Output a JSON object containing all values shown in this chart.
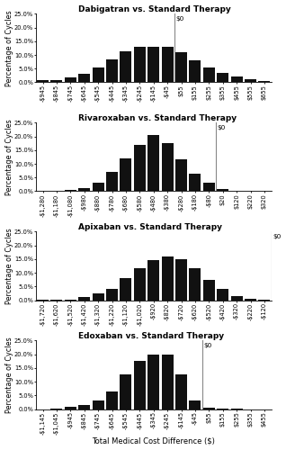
{
  "panels": [
    {
      "title": "Dabigatran vs. Standard Therapy",
      "x0_label": "$0",
      "categories": [
        "-$945",
        "-$845",
        "-$745",
        "-$645",
        "-$545",
        "-$445",
        "-$345",
        "-$245",
        "-$145",
        "-$45",
        "$55",
        "$155",
        "$255",
        "$355",
        "$455",
        "$555",
        "$655"
      ],
      "values": [
        0.7,
        0.8,
        1.8,
        3.0,
        5.3,
        8.5,
        11.2,
        12.8,
        13.0,
        13.0,
        11.0,
        8.0,
        5.3,
        3.3,
        2.0,
        1.0,
        0.4
      ],
      "zero_index": 9,
      "ylim": [
        0,
        25
      ],
      "yticks": [
        0,
        5,
        10,
        15,
        20,
        25
      ]
    },
    {
      "title": "Rivaroxaban vs. Standard Therapy",
      "x0_label": "$0",
      "categories": [
        "-$1,280",
        "-$1,180",
        "-$1,080",
        "-$980",
        "-$880",
        "-$780",
        "-$680",
        "-$580",
        "-$480",
        "-$380",
        "-$280",
        "-$180",
        "-$80",
        "$20",
        "$120",
        "$220",
        "$320"
      ],
      "values": [
        0.0,
        0.2,
        0.5,
        1.0,
        3.0,
        7.0,
        12.0,
        17.0,
        20.5,
        17.5,
        11.8,
        6.3,
        3.0,
        0.7,
        0.2,
        0.05,
        0.0
      ],
      "zero_index": 12,
      "ylim": [
        0,
        25
      ],
      "yticks": [
        0,
        5,
        10,
        15,
        20,
        25
      ]
    },
    {
      "title": "Apixaban vs. Standard Therapy",
      "x0_label": "$0",
      "categories": [
        "-$1,720",
        "-$1,620",
        "-$1,520",
        "-$1,420",
        "-$1,320",
        "-$1,220",
        "-$1,120",
        "-$1,020",
        "-$920",
        "-$820",
        "-$720",
        "-$620",
        "-$520",
        "-$420",
        "-$320",
        "-$220",
        "-$120"
      ],
      "values": [
        0.1,
        0.1,
        0.3,
        1.2,
        2.5,
        4.0,
        8.0,
        11.5,
        14.5,
        16.0,
        15.0,
        11.5,
        7.5,
        4.0,
        1.5,
        0.5,
        0.2
      ],
      "zero_index": 16,
      "ylim": [
        0,
        25
      ],
      "yticks": [
        0,
        5,
        10,
        15,
        20,
        25
      ]
    },
    {
      "title": "Edoxaban vs. Standard Therapy",
      "x0_label": "$0",
      "categories": [
        "-$1,145",
        "-$1,045",
        "-$945",
        "-$845",
        "-$745",
        "-$645",
        "-$545",
        "-$445",
        "-$345",
        "-$245",
        "-$145",
        "-$45",
        "$55",
        "$155",
        "$255",
        "$355",
        "$455"
      ],
      "values": [
        0.0,
        0.3,
        0.8,
        1.5,
        3.0,
        6.5,
        12.5,
        17.5,
        20.0,
        20.0,
        12.5,
        3.0,
        0.5,
        0.2,
        0.05,
        0.0,
        0.0
      ],
      "zero_index": 11,
      "ylim": [
        0,
        25
      ],
      "yticks": [
        0,
        5,
        10,
        15,
        20,
        25
      ]
    }
  ],
  "bar_color": "#111111",
  "vline_color": "#888888",
  "ylabel": "Percentage of Cycles",
  "xlabel": "Total Medical Cost Difference ($)",
  "title_fontsize": 6.5,
  "tick_fontsize": 4.8,
  "label_fontsize": 5.8,
  "xlabel_fontsize": 6.0,
  "background_color": "#ffffff"
}
